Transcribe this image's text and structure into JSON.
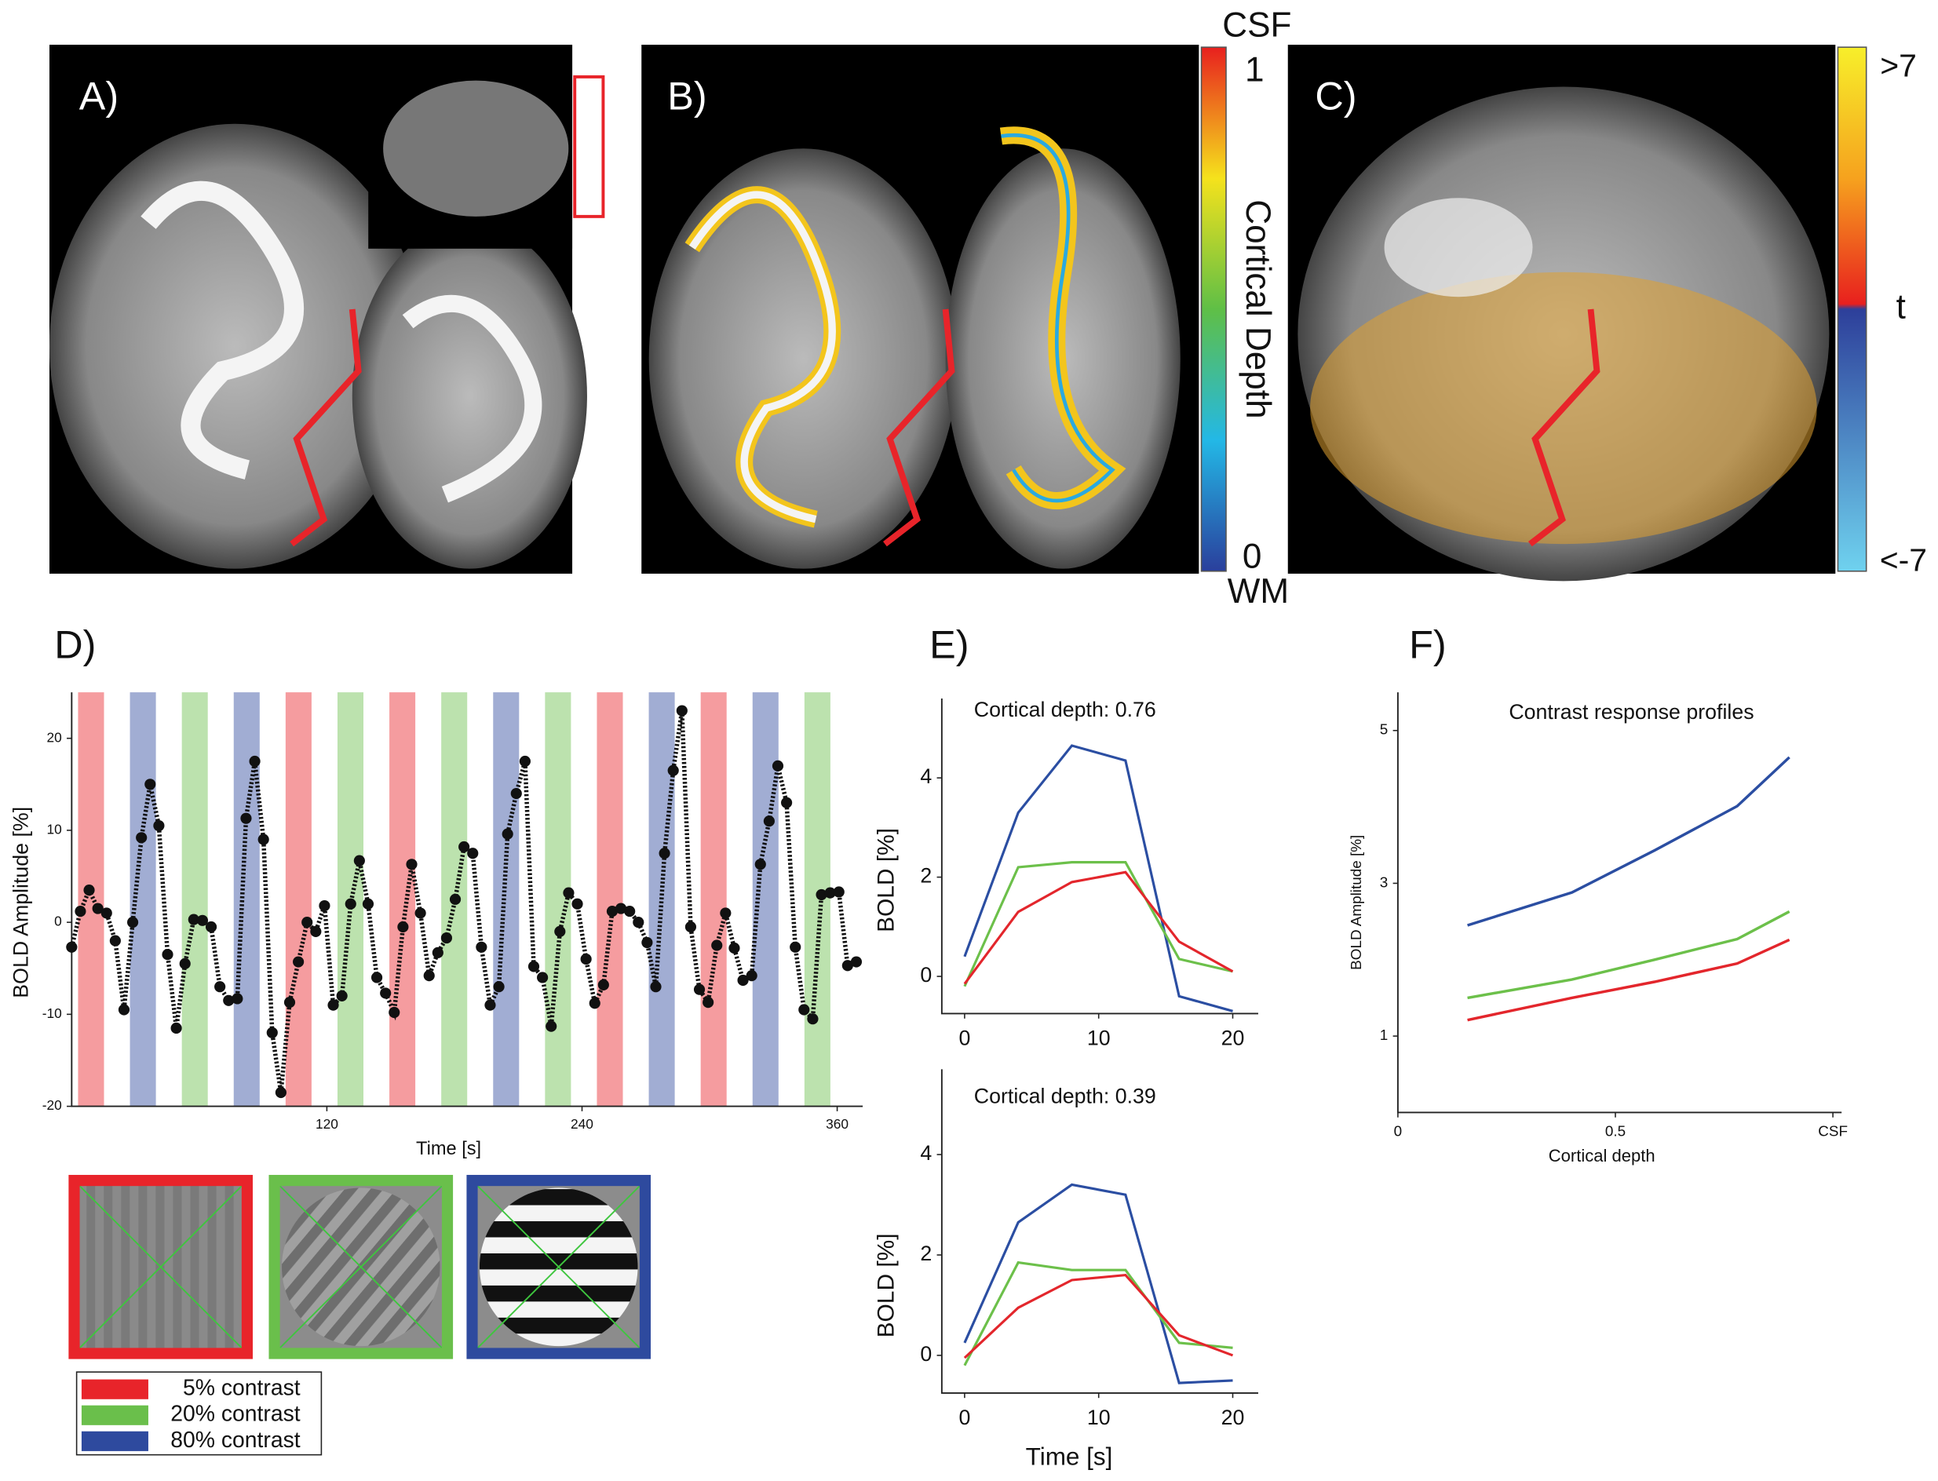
{
  "panels": {
    "a": "A)",
    "b": "B)",
    "c": "C)",
    "d": "D)",
    "e": "E)",
    "f": "F)"
  },
  "colorbar_depth": {
    "top": "CSF",
    "max": "1",
    "label": "Cortical Depth",
    "min": "0",
    "bottom": "WM"
  },
  "colorbar_t": {
    "max": ">7",
    "label": "t",
    "min": "<-7"
  },
  "chart_data": [
    {
      "type": "line",
      "x_label": "Time [s]",
      "y_label": "BOLD Amplitude [%]",
      "xlim": [
        0,
        372
      ],
      "ylim": [
        -20,
        25
      ],
      "xticks": [
        120,
        240,
        360
      ],
      "yticks": [
        -20,
        -10,
        0,
        10,
        20
      ],
      "markers": true,
      "conditions": [
        {
          "name": "5% contrast",
          "color": "#e8242a"
        },
        {
          "name": "20% contrast",
          "color": "#6abf4b"
        },
        {
          "name": "80% contrast",
          "color": "#2e4a9e"
        }
      ],
      "blocks": [
        {
          "start": 3,
          "end": 15.2,
          "condition": 0
        },
        {
          "start": 27.4,
          "end": 39.6,
          "condition": 2
        },
        {
          "start": 51.8,
          "end": 64,
          "condition": 1
        },
        {
          "start": 76.2,
          "end": 88.4,
          "condition": 2
        },
        {
          "start": 100.6,
          "end": 112.8,
          "condition": 0
        },
        {
          "start": 125,
          "end": 137.2,
          "condition": 1
        },
        {
          "start": 149.4,
          "end": 161.6,
          "condition": 0
        },
        {
          "start": 173.8,
          "end": 186,
          "condition": 1
        },
        {
          "start": 198.2,
          "end": 210.4,
          "condition": 2
        },
        {
          "start": 222.6,
          "end": 234.8,
          "condition": 1
        },
        {
          "start": 247,
          "end": 259.2,
          "condition": 0
        },
        {
          "start": 271.4,
          "end": 283.6,
          "condition": 2
        },
        {
          "start": 295.8,
          "end": 308,
          "condition": 0
        },
        {
          "start": 320.2,
          "end": 332.4,
          "condition": 2
        },
        {
          "start": 344.6,
          "end": 356.8,
          "condition": 1
        }
      ],
      "x": [
        0,
        4.1,
        8.2,
        12.3,
        16.4,
        20.5,
        24.6,
        28.7,
        32.8,
        36.9,
        41,
        45.1,
        49.2,
        53.3,
        57.4,
        61.5,
        65.6,
        69.7,
        73.8,
        77.9,
        82,
        86.1,
        90.2,
        94.3,
        98.4,
        102.5,
        106.6,
        110.7,
        114.8,
        118.9,
        123,
        127.1,
        131.2,
        135.3,
        139.4,
        143.5,
        147.6,
        151.7,
        155.8,
        159.9,
        164,
        168.1,
        172.2,
        176.3,
        180.4,
        184.5,
        188.6,
        192.7,
        196.8,
        200.9,
        205,
        209.1,
        213.2,
        217.3,
        221.4,
        225.5,
        229.6,
        233.7,
        237.8,
        241.9,
        246,
        250.1,
        254.2,
        258.3,
        262.4,
        266.5,
        270.6,
        274.7,
        278.8,
        282.9,
        287,
        291.1,
        295.2,
        299.3,
        303.4,
        307.5,
        311.6,
        315.7,
        319.8,
        323.9,
        328,
        332.1,
        336.2,
        340.3,
        344.4,
        348.5,
        352.6,
        356.7,
        360.8,
        364.9,
        369
      ],
      "series": [
        {
          "color": "#111111",
          "values": [
            -2.7,
            1.2,
            3.5,
            1.5,
            1,
            -2,
            -9.5,
            0,
            9.2,
            15,
            10.5,
            -3.5,
            -11.5,
            -4.5,
            0.3,
            0.2,
            -0.5,
            -7,
            -8.5,
            -8.3,
            11.3,
            17.5,
            9,
            -12,
            -18.5,
            -8.7,
            -4.3,
            0,
            -1,
            1.8,
            -9,
            -8,
            2,
            6.7,
            2,
            -6,
            -7.7,
            -9.8,
            -0.5,
            6.3,
            1,
            -5.8,
            -3.3,
            -1.7,
            2.5,
            8.2,
            7.5,
            -2.7,
            -9,
            -7,
            9.6,
            14,
            17.5,
            -4.8,
            -6,
            -11.3,
            -1,
            3.2,
            2,
            -4,
            -8.8,
            -6.8,
            1.2,
            1.5,
            1.2,
            0,
            -2.2,
            -7,
            7.5,
            16.5,
            23,
            -0.5,
            -7.3,
            -8.7,
            -2.5,
            1,
            -2.8,
            -6.3,
            -5.8,
            6.3,
            11,
            17,
            13,
            -2.7,
            -9.5,
            -10.5,
            3,
            3.2,
            3.3,
            -4.7,
            -4.3
          ]
        }
      ]
    },
    {
      "type": "line",
      "title": "Cortical depth: 0.76",
      "y_label": "BOLD [%]",
      "xlim": [
        -1.7,
        21.9
      ],
      "ylim": [
        -0.75,
        5.6
      ],
      "xticks": [
        0,
        10,
        20
      ],
      "yticks": [
        0,
        2,
        4
      ],
      "x": [
        0,
        4,
        8,
        12,
        16,
        20
      ],
      "series": [
        {
          "color": "#2b4ea2",
          "values": [
            0.4,
            3.3,
            4.65,
            4.35,
            -0.4,
            -0.7
          ]
        },
        {
          "color": "#6cc04a",
          "values": [
            -0.2,
            2.2,
            2.3,
            2.3,
            0.35,
            0.1
          ]
        },
        {
          "color": "#e3262c",
          "values": [
            -0.15,
            1.3,
            1.9,
            2.1,
            0.7,
            0.1
          ]
        }
      ]
    },
    {
      "type": "line",
      "title": "Cortical depth: 0.39",
      "y_label": "BOLD [%]",
      "x_label": "Time [s]",
      "xlim": [
        -1.7,
        21.9
      ],
      "ylim": [
        -0.75,
        5.7
      ],
      "xticks": [
        0,
        10,
        20
      ],
      "yticks": [
        0,
        2,
        4
      ],
      "x": [
        0,
        4,
        8,
        12,
        16,
        20
      ],
      "series": [
        {
          "color": "#2b4ea2",
          "values": [
            0.25,
            2.65,
            3.4,
            3.2,
            -0.55,
            -0.5
          ]
        },
        {
          "color": "#6cc04a",
          "values": [
            -0.2,
            1.85,
            1.7,
            1.7,
            0.25,
            0.15
          ]
        },
        {
          "color": "#e3262c",
          "values": [
            -0.05,
            0.95,
            1.5,
            1.6,
            0.4,
            0
          ]
        }
      ]
    },
    {
      "type": "line",
      "title": "Contrast response profiles",
      "x_label": "Cortical depth",
      "y_label": "BOLD Amplitude [%]",
      "xlim": [
        0,
        1.02
      ],
      "ylim": [
        0,
        5.5
      ],
      "xticks": [
        0,
        0.5,
        {
          "value": 1,
          "label": "CSF"
        }
      ],
      "yticks": [
        1,
        3,
        5
      ],
      "x": [
        0.16,
        0.4,
        0.59,
        0.78,
        0.9
      ],
      "series": [
        {
          "color": "#2b4ea2",
          "values": [
            2.45,
            2.88,
            3.43,
            4.01,
            4.65
          ]
        },
        {
          "color": "#6cc04a",
          "values": [
            1.5,
            1.74,
            2.0,
            2.27,
            2.63
          ]
        },
        {
          "color": "#e3262c",
          "values": [
            1.21,
            1.5,
            1.71,
            1.95,
            2.26
          ]
        }
      ]
    }
  ]
}
